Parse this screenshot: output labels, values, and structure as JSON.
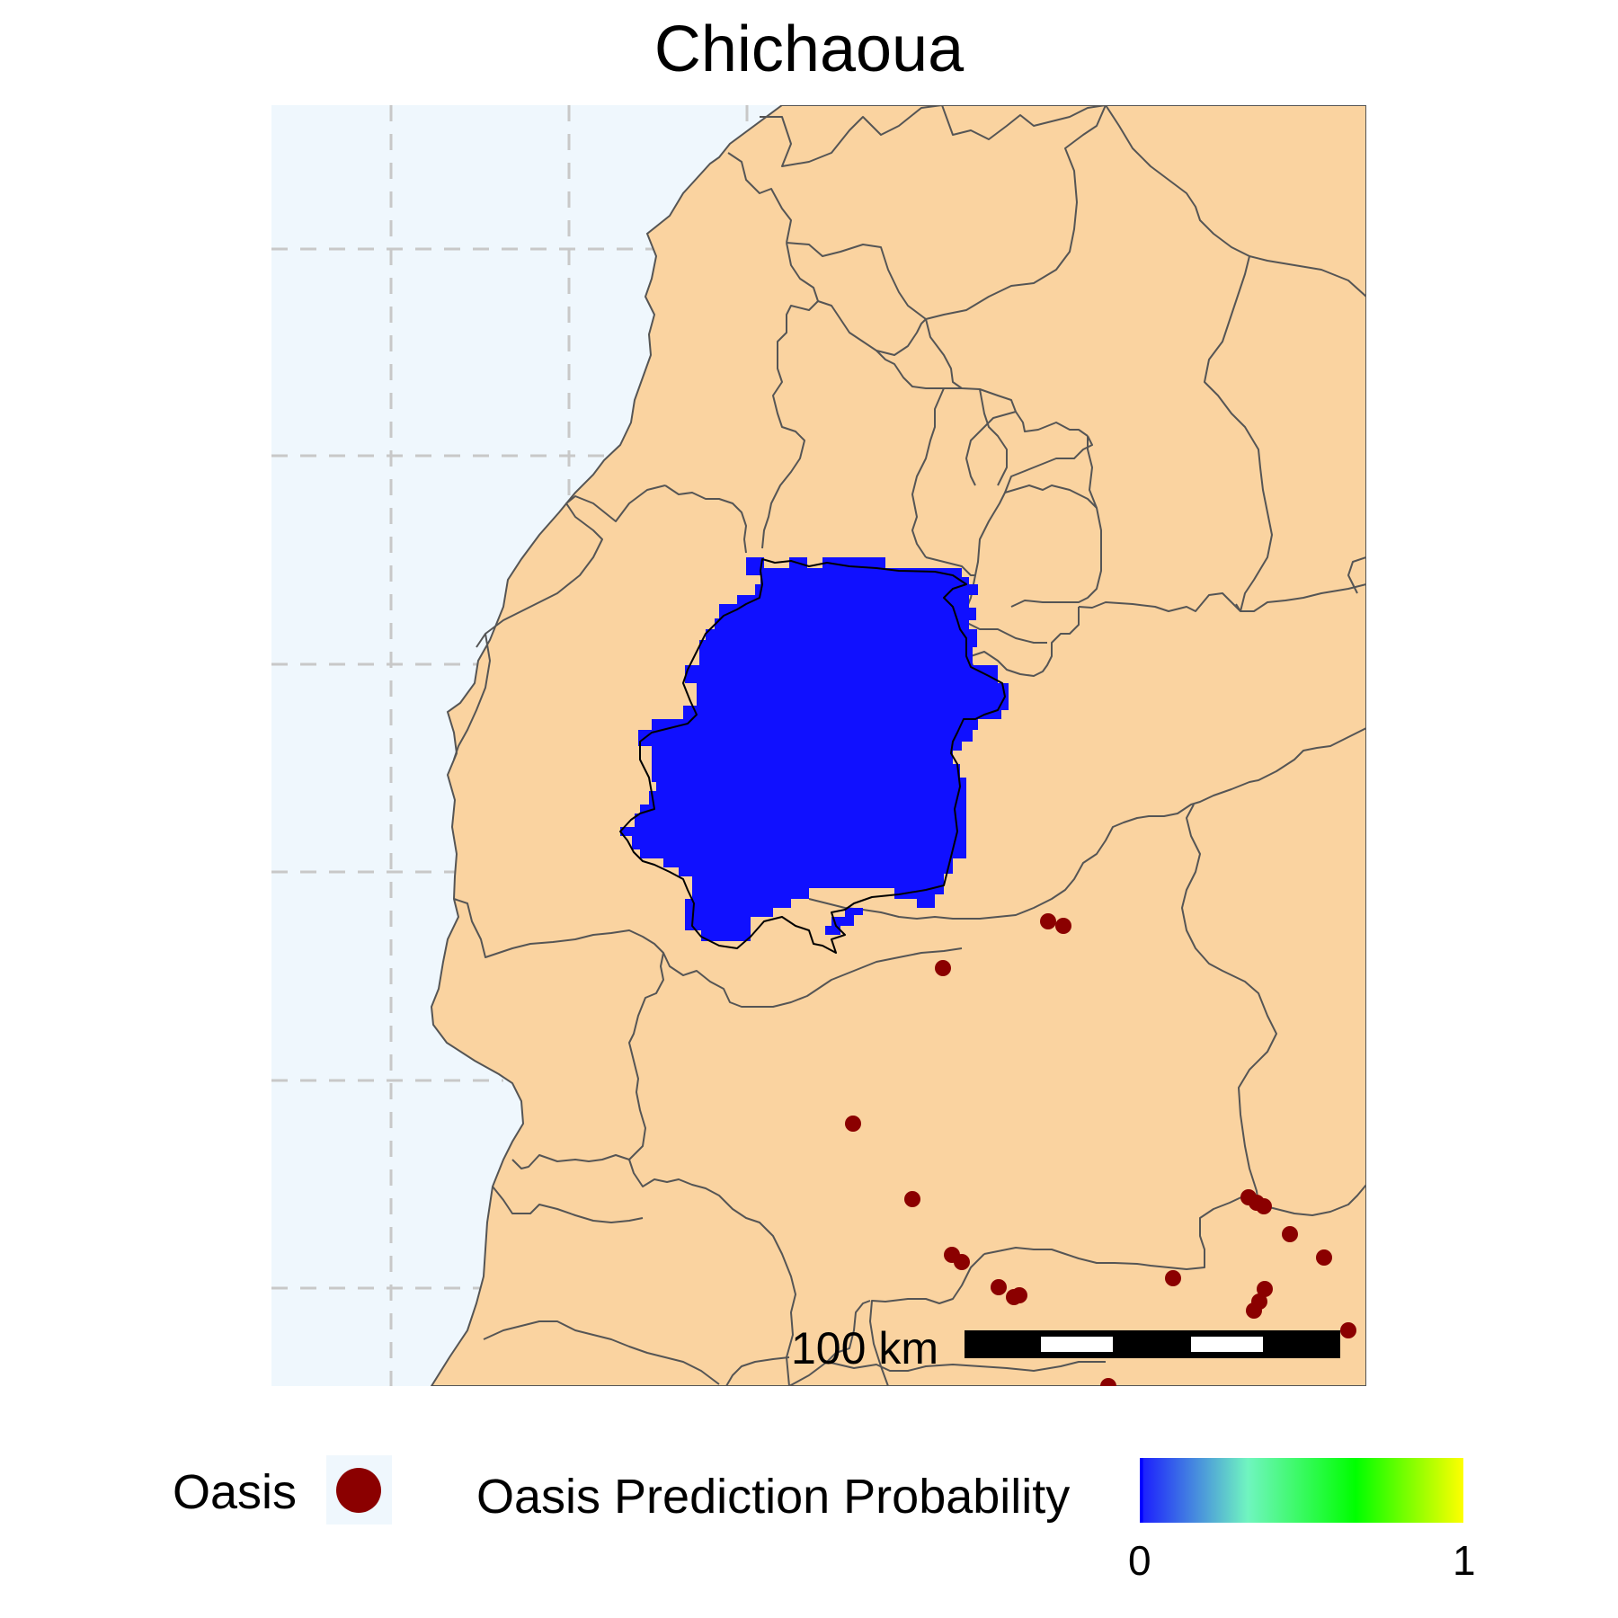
{
  "title": "Chichaoua",
  "colors": {
    "sea": "#eff7fd",
    "land": "#fad3a0",
    "border": "#555555",
    "grid": "#c8c8c8",
    "prediction": "#1010ff",
    "oasis_point": "#8b0000"
  },
  "scale_bar": {
    "label": "100 km"
  },
  "legend": {
    "oasis_label": "Oasis",
    "probability_label": "Oasis Prediction Probability",
    "gradient_min": "0",
    "gradient_max": "1",
    "gradient_colors": [
      "#1a1aff",
      "#70f5c0",
      "#00ff00",
      "#ffff00"
    ]
  },
  "chart_data": {
    "type": "map",
    "title": "Chichaoua",
    "layers": [
      "sea",
      "provinces",
      "prediction-raster",
      "oasis-points"
    ],
    "prediction_value_range": [
      0,
      1
    ],
    "oasis_points_count": 25
  }
}
